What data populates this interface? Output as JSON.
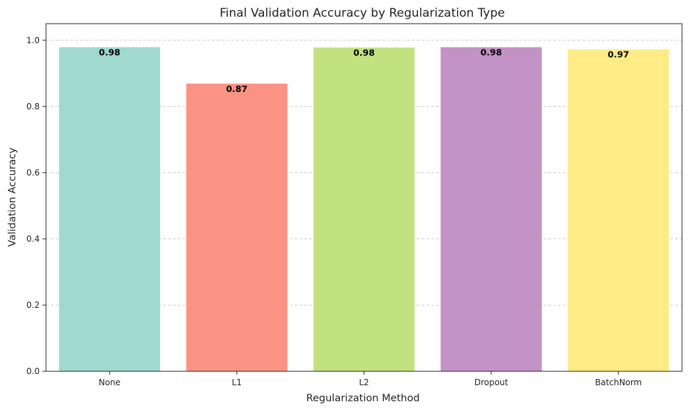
{
  "chart_data": {
    "type": "bar",
    "title": "Final Validation Accuracy by Regularization Type",
    "xlabel": "Regularization Method",
    "ylabel": "Validation Accuracy",
    "categories": [
      "None",
      "L1",
      "L2",
      "Dropout",
      "BatchNorm"
    ],
    "values": [
      0.979,
      0.869,
      0.978,
      0.979,
      0.973
    ],
    "data_labels": [
      "0.98",
      "0.87",
      "0.98",
      "0.98",
      "0.97"
    ],
    "colors": [
      "#9fd9d0",
      "#fb9384",
      "#c2e27f",
      "#c493c6",
      "#ffec87"
    ],
    "ylim": [
      0,
      1.05
    ],
    "yticks": [
      0.0,
      0.2,
      0.4,
      0.6,
      0.8,
      1.0
    ],
    "ytick_labels": [
      "0.0",
      "0.2",
      "0.4",
      "0.6",
      "0.8",
      "1.0"
    ],
    "grid": "y-dashed",
    "legend": "none"
  }
}
